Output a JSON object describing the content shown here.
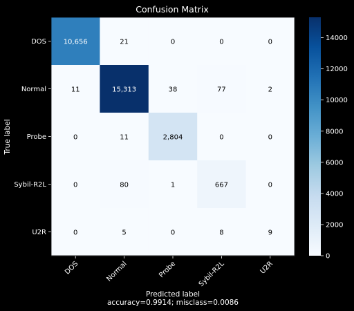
{
  "chart_data": {
    "type": "heatmap",
    "title": "Confusion Matrix",
    "xlabel": "Predicted label",
    "xlabel_sub": "accuracy=0.9914; misclass=0.0086",
    "ylabel": "True label",
    "x_categories": [
      "DOS",
      "Normal",
      "Probe",
      "Sybil-R2L",
      "U2R"
    ],
    "y_categories": [
      "DOS",
      "Normal",
      "Probe",
      "Sybil-R2L",
      "U2R"
    ],
    "values": [
      [
        10656,
        21,
        0,
        0,
        0
      ],
      [
        11,
        15313,
        38,
        77,
        2
      ],
      [
        0,
        11,
        2804,
        0,
        0
      ],
      [
        0,
        80,
        1,
        667,
        0
      ],
      [
        0,
        5,
        0,
        8,
        9
      ]
    ],
    "value_labels": [
      [
        "10,656",
        "21",
        "0",
        "0",
        "0"
      ],
      [
        "11",
        "15,313",
        "38",
        "77",
        "2"
      ],
      [
        "0",
        "11",
        "2,804",
        "0",
        "0"
      ],
      [
        "0",
        "80",
        "1",
        "667",
        "0"
      ],
      [
        "0",
        "5",
        "0",
        "8",
        "9"
      ]
    ],
    "colorbar": {
      "colormap": "Blues",
      "range": [
        0,
        15313
      ],
      "ticks": [
        0,
        2000,
        4000,
        6000,
        8000,
        10000,
        12000,
        14000
      ]
    },
    "grid": false,
    "legend": "colorbar-right"
  }
}
